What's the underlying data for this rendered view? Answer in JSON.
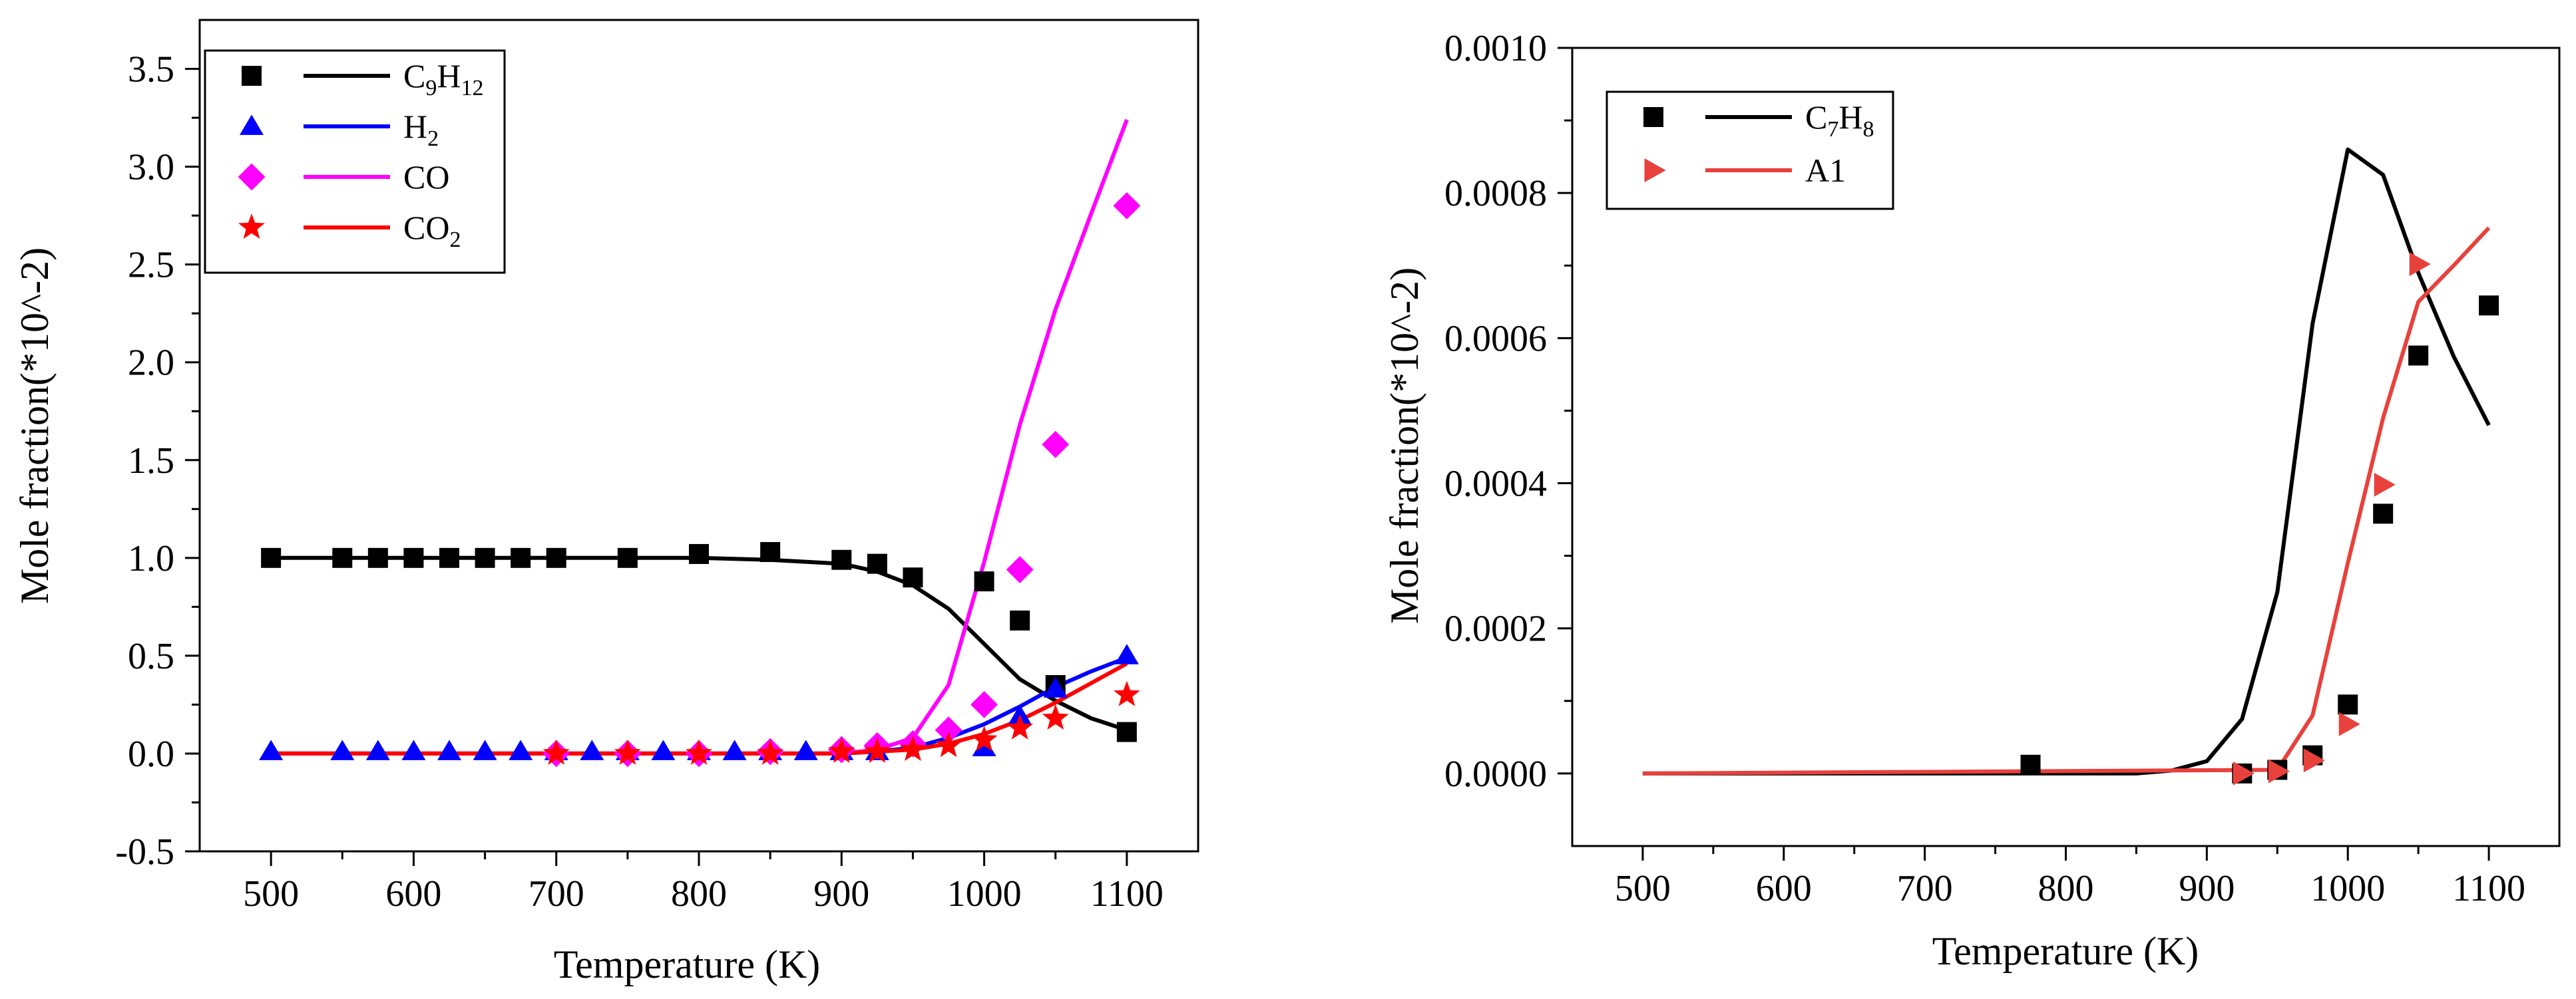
{
  "chart_data": [
    {
      "type": "line+scatter",
      "xlabel": "Temperature (K)",
      "ylabel": "Mole fraction(*10^-2)",
      "xlim": [
        450,
        1150
      ],
      "ylim": [
        -0.5,
        3.75
      ],
      "xticks": [
        500,
        600,
        700,
        800,
        900,
        1000,
        1100
      ],
      "xtick_labels": [
        "500",
        "600",
        "700",
        "800",
        "900",
        "1000",
        "1100"
      ],
      "yticks": [
        -0.5,
        0.0,
        0.5,
        1.0,
        1.5,
        2.0,
        2.5,
        3.0,
        3.5
      ],
      "ytick_labels": [
        "-0.5",
        "0.0",
        "0.5",
        "1.0",
        "1.5",
        "2.0",
        "2.5",
        "3.0",
        "3.5"
      ],
      "legend_position": "top-left",
      "series": [
        {
          "name": "C9H12",
          "label": {
            "base": "C",
            "sub1": "9",
            "mid": "H",
            "sub2": "12"
          },
          "color": "#000000",
          "marker": "square",
          "points": {
            "x": [
              500,
              550,
              575,
              600,
              625,
              650,
              675,
              700,
              750,
              800,
              850,
              900,
              925,
              950,
              1000,
              1025,
              1050,
              1100
            ],
            "y": [
              1.0,
              1.0,
              1.0,
              1.0,
              1.0,
              1.0,
              1.0,
              1.0,
              1.0,
              1.02,
              1.03,
              0.99,
              0.97,
              0.9,
              0.88,
              0.68,
              0.35,
              0.11
            ]
          },
          "line": {
            "x": [
              500,
              600,
              700,
              800,
              850,
              900,
              925,
              950,
              975,
              1000,
              1025,
              1050,
              1075,
              1100
            ],
            "y": [
              1.0,
              1.0,
              1.0,
              1.0,
              0.99,
              0.97,
              0.93,
              0.86,
              0.74,
              0.56,
              0.38,
              0.27,
              0.18,
              0.12
            ]
          }
        },
        {
          "name": "H2",
          "label": {
            "base": "H",
            "sub1": "2",
            "mid": "",
            "sub2": ""
          },
          "color": "#0000ff",
          "marker": "triangle",
          "points": {
            "x": [
              500,
              550,
              575,
              600,
              625,
              650,
              675,
              700,
              725,
              750,
              775,
              800,
              825,
              850,
              875,
              900,
              925,
              1000,
              1025,
              1050,
              1100
            ],
            "y": [
              0.01,
              0.01,
              0.01,
              0.01,
              0.01,
              0.01,
              0.01,
              0.01,
              0.01,
              0.01,
              0.01,
              0.01,
              0.01,
              0.01,
              0.01,
              0.01,
              0.01,
              0.03,
              0.19,
              0.33,
              0.5
            ]
          },
          "line": {
            "x": [
              500,
              900,
              925,
              950,
              975,
              1000,
              1025,
              1050,
              1075,
              1100
            ],
            "y": [
              0.0,
              0.0,
              0.01,
              0.03,
              0.08,
              0.15,
              0.24,
              0.34,
              0.42,
              0.49
            ]
          }
        },
        {
          "name": "CO",
          "label": {
            "base": "CO",
            "sub1": "",
            "mid": "",
            "sub2": ""
          },
          "color": "#ff00ff",
          "marker": "diamond",
          "points": {
            "x": [
              700,
              750,
              800,
              850,
              900,
              925,
              950,
              975,
              1000,
              1025,
              1050,
              1100
            ],
            "y": [
              0.0,
              0.0,
              0.0,
              0.01,
              0.02,
              0.04,
              0.05,
              0.12,
              0.25,
              0.94,
              1.58,
              2.8
            ]
          },
          "line": {
            "x": [
              500,
              900,
              925,
              950,
              975,
              1000,
              1025,
              1050,
              1075,
              1100
            ],
            "y": [
              0.0,
              0.0,
              0.02,
              0.08,
              0.35,
              0.98,
              1.68,
              2.27,
              2.76,
              3.24
            ]
          }
        },
        {
          "name": "CO2",
          "label": {
            "base": "CO",
            "sub1": "2",
            "mid": "",
            "sub2": ""
          },
          "color": "#ff0000",
          "marker": "star",
          "points": {
            "x": [
              700,
              750,
              800,
              850,
              900,
              925,
              950,
              975,
              1000,
              1025,
              1050,
              1100
            ],
            "y": [
              0.0,
              0.0,
              0.0,
              0.0,
              0.01,
              0.01,
              0.02,
              0.04,
              0.07,
              0.13,
              0.18,
              0.3
            ]
          },
          "line": {
            "x": [
              500,
              900,
              925,
              950,
              975,
              1000,
              1025,
              1050,
              1075,
              1100
            ],
            "y": [
              0.0,
              0.0,
              0.01,
              0.02,
              0.05,
              0.1,
              0.17,
              0.26,
              0.36,
              0.46
            ]
          }
        }
      ]
    },
    {
      "type": "line+scatter",
      "xlabel": "Temperature (K)",
      "ylabel": "Mole fraction(*10^-2)",
      "xlim": [
        450,
        1150
      ],
      "ylim": [
        -0.0001,
        0.001
      ],
      "xticks": [
        500,
        600,
        700,
        800,
        900,
        1000,
        1100
      ],
      "xtick_labels": [
        "500",
        "600",
        "700",
        "800",
        "900",
        "1000",
        "1100"
      ],
      "yticks": [
        0.0,
        0.0002,
        0.0004,
        0.0006,
        0.0008,
        0.001
      ],
      "ytick_labels": [
        "0.0000",
        "0.0002",
        "0.0004",
        "0.0006",
        "0.0008",
        "0.0010"
      ],
      "legend_position": "top-left",
      "series": [
        {
          "name": "C7H8",
          "label": {
            "base": "C",
            "sub1": "7",
            "mid": "H",
            "sub2": "8"
          },
          "color": "#000000",
          "marker": "square",
          "points": {
            "x": [
              775,
              925,
              950,
              975,
              1000,
              1025,
              1050,
              1100
            ],
            "y": [
              1.2e-05,
              0.0,
              5e-06,
              2.5e-05,
              9.5e-05,
              0.000358,
              0.000576,
              0.000645
            ]
          },
          "line": {
            "x": [
              500,
              850,
              875,
              900,
              925,
              950,
              975,
              1000,
              1025,
              1050,
              1075,
              1100
            ],
            "y": [
              0.0,
              0.0,
              4e-06,
              1.7e-05,
              7.5e-05,
              0.00025,
              0.00062,
              0.00086,
              0.000825,
              0.00069,
              0.000575,
              0.00048
            ]
          }
        },
        {
          "name": "A1",
          "label": {
            "base": "A1",
            "sub1": "",
            "mid": "",
            "sub2": ""
          },
          "color": "#e8413c",
          "marker": "triangle-right",
          "points": {
            "x": [
              925,
              950,
              975,
              1000,
              1025,
              1050
            ],
            "y": [
              0.0,
              3e-06,
              1.8e-05,
              6.8e-05,
              0.000398,
              0.000702
            ]
          },
          "line": {
            "x": [
              500,
              950,
              975,
              1000,
              1025,
              1050,
              1075,
              1100
            ],
            "y": [
              0.0,
              5e-06,
              8e-05,
              0.00029,
              0.00049,
              0.00065,
              0.0007,
              0.000752
            ]
          }
        }
      ]
    }
  ]
}
